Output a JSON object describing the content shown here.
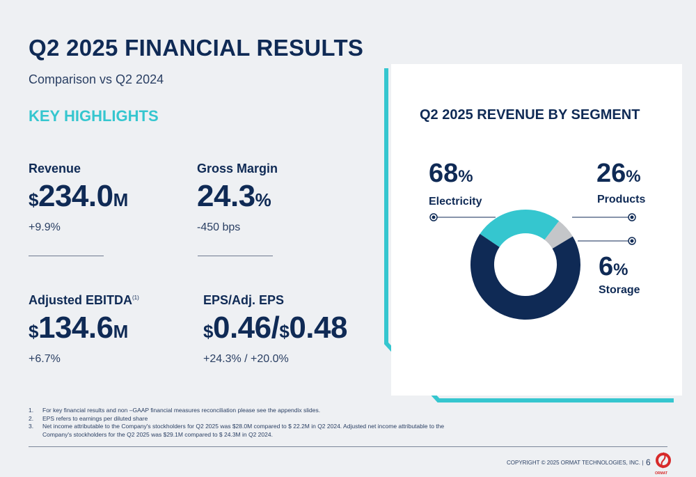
{
  "header": {
    "title": "Q2 2025 FINANCIAL RESULTS",
    "subtitle": "Comparison vs Q2 2024",
    "section": "KEY HIGHLIGHTS"
  },
  "metrics": {
    "revenue": {
      "label": "Revenue",
      "prefix": "$",
      "value": "234.0",
      "suffix": "M",
      "change": "+9.9%"
    },
    "gross_margin": {
      "label": "Gross Margin",
      "value": "24.3",
      "suffix": "%",
      "change": "-450 bps"
    },
    "adj_ebitda": {
      "label": "Adjusted EBITDA",
      "sup": "(1)",
      "prefix": "$",
      "value": "134.6",
      "suffix": "M",
      "change": "+6.7%"
    },
    "eps": {
      "label": "EPS/Adj. EPS",
      "prefix1": "$",
      "value1": "0.46/",
      "prefix2": "$",
      "value2": "0.48",
      "change": "+24.3% / +20.0%"
    }
  },
  "chart_data": {
    "type": "pie",
    "title": "Q2 2025 REVENUE BY SEGMENT",
    "categories": [
      "Electricity",
      "Products",
      "Storage"
    ],
    "values": [
      68,
      26,
      6
    ],
    "colors": [
      "#0f2a55",
      "#35c6cf",
      "#c4c6c9"
    ],
    "labels": [
      {
        "num": "68",
        "unit": "%",
        "name": "Electricity"
      },
      {
        "num": "26",
        "unit": "%",
        "name": "Products"
      },
      {
        "num": "6",
        "unit": "%",
        "name": "Storage"
      }
    ]
  },
  "footnotes": [
    {
      "num": "1.",
      "text": "For key financial results and non –GAAP financial measures reconciliation please see the appendix slides."
    },
    {
      "num": "2.",
      "text": "EPS refers to earnings per diluted share"
    },
    {
      "num": "3.",
      "text": "Net income attributable to the Company's stockholders for Q2 2025 was $28.0M compared to $ 22.2M in Q2 2024. Adjusted net income attributable to the Company's stockholders for the Q2 2025 was $29.1M compared to $ 24.3M in Q2 2024."
    }
  ],
  "footer": {
    "copyright": "COPYRIGHT © 2025 ORMAT TECHNOLOGIES, INC.  |",
    "page": "6",
    "logo_text": "ORMAT"
  },
  "colors": {
    "navy": "#0f2a55",
    "teal": "#35c6cf",
    "gray": "#c4c6c9",
    "logo_red": "#d72a2a"
  }
}
